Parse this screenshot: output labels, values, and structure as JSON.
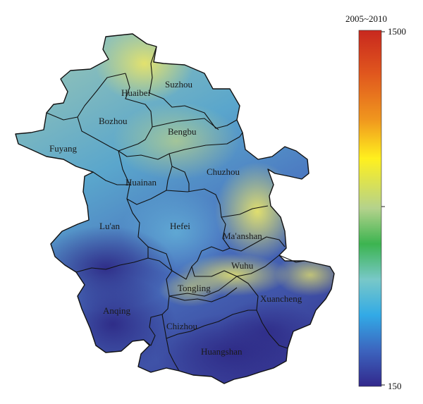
{
  "legend": {
    "title": "2005~2010",
    "max_label": "1500",
    "min_label": "150",
    "colors": [
      "#c8281e",
      "#e0561e",
      "#f0961e",
      "#fff01e",
      "#b4d28c",
      "#3cb450",
      "#78c8c8",
      "#32aae6",
      "#3c64be",
      "#32288c"
    ]
  },
  "cities": [
    {
      "id": "suzhou",
      "label": "Suzhou"
    },
    {
      "id": "huaibei",
      "label": "Huaibei"
    },
    {
      "id": "bozhou",
      "label": "Bozhou"
    },
    {
      "id": "bengbu",
      "label": "Bengbu"
    },
    {
      "id": "fuyang",
      "label": "Fuyang"
    },
    {
      "id": "huainan",
      "label": "Huainan"
    },
    {
      "id": "chuzhou",
      "label": "Chuzhou"
    },
    {
      "id": "luan",
      "label": "Lu'an"
    },
    {
      "id": "hefei",
      "label": "Hefei"
    },
    {
      "id": "maanshan",
      "label": "Ma'anshan"
    },
    {
      "id": "wuhu",
      "label": "Wuhu"
    },
    {
      "id": "tongling",
      "label": "Tongling"
    },
    {
      "id": "xuancheng",
      "label": "Xuancheng"
    },
    {
      "id": "anqing",
      "label": "Anqing"
    },
    {
      "id": "chizhou",
      "label": "Chizhou"
    },
    {
      "id": "huangshan",
      "label": "Huangshan"
    }
  ]
}
